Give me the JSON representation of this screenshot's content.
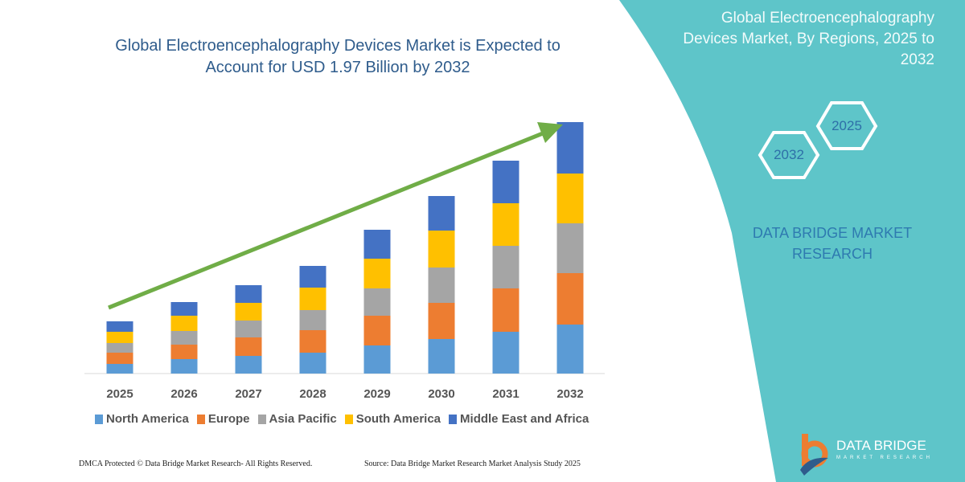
{
  "title": "Global Electroencephalography Devices Market is Expected to Account for USD 1.97 Billion by 2032",
  "side_panel": {
    "title": "Global Electroencephalography Devices Market, By Regions, 2025 to 2032",
    "hex_labels": [
      "2025",
      "2032"
    ],
    "company": "DATA BRIDGE MARKET RESEARCH",
    "teal_color": "#5EC5C9"
  },
  "logo": {
    "name": "DATA BRIDGE",
    "tagline": "MARKET RESEARCH"
  },
  "footer": {
    "left": "DMCA Protected © Data Bridge Market Research- All Rights Reserved.",
    "right": "Source: Data Bridge Market Research  Market Analysis Study 2025"
  },
  "chart_data": {
    "type": "bar",
    "stacked": true,
    "categories": [
      "2025",
      "2026",
      "2027",
      "2028",
      "2029",
      "2030",
      "2031",
      "2032"
    ],
    "series": [
      {
        "name": "North America",
        "color": "#5B9BD5",
        "values": [
          12,
          18,
          22,
          26,
          35,
          43,
          52,
          61
        ]
      },
      {
        "name": "Europe",
        "color": "#ED7D31",
        "values": [
          14,
          18,
          23,
          28,
          37,
          45,
          54,
          64
        ]
      },
      {
        "name": "Asia Pacific",
        "color": "#A5A5A5",
        "values": [
          12,
          17,
          21,
          25,
          34,
          44,
          53,
          62
        ]
      },
      {
        "name": "South America",
        "color": "#FFC000",
        "values": [
          14,
          19,
          22,
          28,
          37,
          46,
          53,
          62
        ]
      },
      {
        "name": "Middle East and Africa",
        "color": "#4472C4",
        "values": [
          13,
          17,
          22,
          27,
          36,
          43,
          53,
          64
        ]
      }
    ],
    "y_axis_shown": false,
    "grid": false,
    "legend_position": "bottom",
    "trend_arrow_color": "#70AD47"
  }
}
